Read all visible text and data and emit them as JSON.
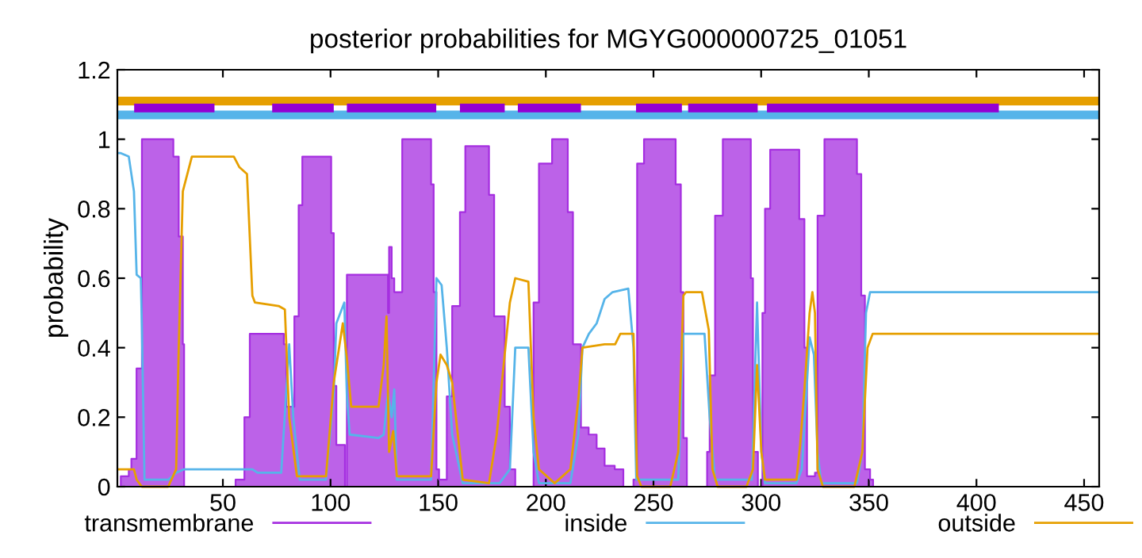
{
  "chart_data": {
    "type": "line",
    "title": "posterior probabilities for MGYG000000725_01051",
    "ylabel": "probability",
    "xlim": [
      1,
      457
    ],
    "xticks": [
      50,
      100,
      150,
      200,
      250,
      300,
      350,
      400,
      450
    ],
    "ylim": [
      0,
      1.2
    ],
    "yticks": [
      0,
      {
        "value": 0.2,
        "label": "0.2"
      },
      {
        "value": 0.4,
        "label": "0.4"
      },
      {
        "value": 0.6,
        "label": "0.6"
      },
      {
        "value": 0.8,
        "label": "0.8"
      },
      {
        "value": 1,
        "label": "1"
      },
      {
        "value": 1.2,
        "label": "1.2"
      }
    ],
    "grid": false,
    "legend": "bottom",
    "marker": "none",
    "line_style": "solid",
    "series": [
      {
        "name": "transmembrane",
        "type": "area",
        "color": "#a52ee0",
        "x": [
          1,
          2.6,
          6.3,
          7.5,
          9.9,
          12.4,
          24.6,
          27.0,
          29.5,
          31.4,
          32.0,
          55.9,
          60,
          62.5,
          63.7,
          77.1,
          78.3,
          79.5,
          80.3,
          83.2,
          85.2,
          86.9,
          97.9,
          100.3,
          101.5,
          102.7,
          105.7,
          106.7,
          107.6,
          124.7,
          126.7,
          127.2,
          128.4,
          129.6,
          133.3,
          145.5,
          146.7,
          147.9,
          149.2,
          150.4,
          154.0,
          156.5,
          160.1,
          162.6,
          172.3,
          173.6,
          176.0,
          180.9,
          183.3,
          185.8,
          193.1,
          194.3,
          196.8,
          202.9,
          209.0,
          210.2,
          212.6,
          216.3,
          219.9,
          223.6,
          227.3,
          232.0,
          236,
          240.7,
          242.4,
          245.6,
          257.8,
          260.3,
          262.7,
          263.9,
          265.5,
          274.9,
          276.1,
          278.6,
          282.2,
          293.2,
          295.2,
          296.2,
          298.5,
          300.6,
          301.8,
          304.2,
          315.2,
          317.7,
          320.1,
          321.3,
          325.0,
          326.2,
          329.4,
          342.1,
          344.5,
          346.5,
          348.2,
          350.6,
          352,
          457
        ],
        "values": [
          0,
          0.03,
          0.05,
          0.08,
          0.34,
          1.0,
          1.0,
          0.95,
          0.72,
          0.41,
          0,
          0.02,
          0.2,
          0.44,
          0.44,
          0.44,
          0.41,
          0.23,
          0.23,
          0.49,
          0.81,
          0.95,
          0.95,
          0.73,
          0.29,
          0.12,
          0.12,
          0,
          0.61,
          0.61,
          0.5,
          0.69,
          0.6,
          0.56,
          1.0,
          1.0,
          0.87,
          0.56,
          0.05,
          0.02,
          0.26,
          0.52,
          0.79,
          0.98,
          0.98,
          0.84,
          0.49,
          0.23,
          0.05,
          0,
          0,
          0.53,
          0.93,
          1.0,
          1.0,
          0.79,
          0.41,
          0.17,
          0.15,
          0.11,
          0.06,
          0.05,
          0,
          0.02,
          0.93,
          1.0,
          1.0,
          0.87,
          0.56,
          0.14,
          0,
          0.1,
          0.32,
          0.78,
          1.0,
          1.0,
          0.6,
          0.1,
          0,
          0.5,
          0.8,
          0.97,
          0.97,
          0.77,
          0.4,
          0.03,
          0.04,
          0.78,
          1.0,
          1.0,
          0.9,
          0.55,
          0.05,
          0.02,
          0,
          0
        ]
      },
      {
        "name": "inside",
        "color": "#56b4e9",
        "x": [
          1,
          2.6,
          6.3,
          8.7,
          9.95,
          11.9,
          12.4,
          13.6,
          24.6,
          28.3,
          32.0,
          63.7,
          66.1,
          77.1,
          80.8,
          82.7,
          85.7,
          97.9,
          101.5,
          102.7,
          106.4,
          107.6,
          108.9,
          122.3,
          124.7,
          126.7,
          128.4,
          129.6,
          130.8,
          146.7,
          149.2,
          151.6,
          154.0,
          156.5,
          161.4,
          178.5,
          183.3,
          185.8,
          191.9,
          194.3,
          196.8,
          211.4,
          215.1,
          217.0,
          220.0,
          223.6,
          227.3,
          231.0,
          238.3,
          240.7,
          242.0,
          261.5,
          263.9,
          273.7,
          276.1,
          278.6,
          295.7,
          298.1,
          300.1,
          301.8,
          316.4,
          318.9,
          321.3,
          322.5,
          324.5,
          326.2,
          327.9,
          344.5,
          347.0,
          348.7,
          350.6,
          368.9,
          457
        ],
        "values": [
          0.96,
          0.96,
          0.95,
          0.85,
          0.61,
          0.6,
          0.46,
          0.02,
          0.02,
          0.04,
          0.05,
          0.05,
          0.04,
          0.04,
          0.41,
          0.2,
          0.02,
          0.02,
          0.27,
          0.47,
          0.53,
          0.26,
          0.15,
          0.14,
          0.15,
          0.27,
          0.2,
          0.28,
          0.02,
          0.02,
          0.6,
          0.58,
          0.4,
          0.15,
          0.01,
          0.01,
          0.05,
          0.4,
          0.4,
          0.1,
          0.01,
          0.01,
          0.15,
          0.4,
          0.44,
          0.47,
          0.54,
          0.56,
          0.57,
          0.4,
          0.02,
          0.02,
          0.44,
          0.44,
          0.2,
          0.02,
          0.02,
          0.53,
          0.1,
          0.01,
          0.01,
          0.05,
          0.3,
          0.43,
          0.38,
          0.1,
          0.01,
          0.01,
          0.1,
          0.5,
          0.56,
          0.56,
          0.56
        ]
      },
      {
        "name": "outside",
        "color": "#e69f00",
        "x": [
          1,
          8.7,
          9.95,
          12.4,
          24.6,
          28.3,
          29.5,
          31.4,
          35.6,
          55.1,
          57.6,
          61.2,
          63.7,
          64.9,
          75.9,
          78.8,
          80.8,
          84.4,
          97.9,
          101.5,
          105.7,
          107.6,
          109.6,
          122.3,
          124.7,
          126.0,
          127.2,
          129.1,
          130.8,
          146.7,
          149.2,
          151.1,
          154.0,
          156.5,
          161.4,
          173.6,
          177.2,
          183.3,
          185.8,
          191.9,
          194.3,
          196.8,
          204.1,
          211.4,
          215.1,
          217.0,
          227.3,
          232.2,
          234.6,
          240.7,
          242.4,
          244.4,
          257.8,
          261.5,
          263.9,
          265.1,
          272.5,
          275.7,
          277.4,
          279.8,
          293.2,
          296.2,
          298.1,
          300.1,
          301.8,
          316.4,
          318.1,
          320.1,
          322.5,
          323.8,
          325.0,
          326.2,
          328.7,
          343.3,
          347.0,
          349.4,
          351.8,
          457
        ],
        "values": [
          0.05,
          0.05,
          0.02,
          0,
          0,
          0.05,
          0.4,
          0.85,
          0.95,
          0.95,
          0.92,
          0.9,
          0.55,
          0.53,
          0.52,
          0.51,
          0.2,
          0.03,
          0.03,
          0.3,
          0.47,
          0.37,
          0.23,
          0.23,
          0.35,
          0.49,
          0.1,
          0.16,
          0.03,
          0.03,
          0.3,
          0.38,
          0.35,
          0.3,
          0.02,
          0.01,
          0.15,
          0.53,
          0.6,
          0.59,
          0.2,
          0.05,
          0.01,
          0.05,
          0.25,
          0.4,
          0.41,
          0.41,
          0.44,
          0.44,
          0.03,
          0,
          0,
          0.1,
          0.55,
          0.56,
          0.56,
          0.45,
          0.05,
          0,
          0,
          0.05,
          0.35,
          0.1,
          0.02,
          0.02,
          0.12,
          0.28,
          0.5,
          0.56,
          0.5,
          0.05,
          0,
          0,
          0.1,
          0.4,
          0.44,
          0.44
        ]
      },
      {
        "color": "#e69f00",
        "x": [
          1,
          457
        ],
        "values": [
          1.11,
          1.11
        ]
      },
      {
        "color": "#56b4e9",
        "x": [
          1,
          457
        ],
        "values": [
          1.07,
          1.07
        ]
      },
      {
        "color": "#9400d3",
        "x": [
          8.8,
          46.1,
          46.2,
          72.9,
          101.5,
          101.6,
          107.6,
          149.1,
          149.2,
          160.1,
          180.9,
          181,
          187,
          216.3,
          216.4,
          241.9,
          263.2,
          263.3,
          266.1,
          298.4,
          298.5,
          302.7,
          410.4
        ],
        "values": [
          1.09,
          1.09,
          null,
          1.09,
          1.09,
          null,
          1.09,
          1.09,
          null,
          1.09,
          1.09,
          null,
          1.09,
          1.09,
          null,
          1.09,
          1.09,
          null,
          1.09,
          1.09,
          null,
          1.09,
          1.09
        ]
      }
    ]
  }
}
